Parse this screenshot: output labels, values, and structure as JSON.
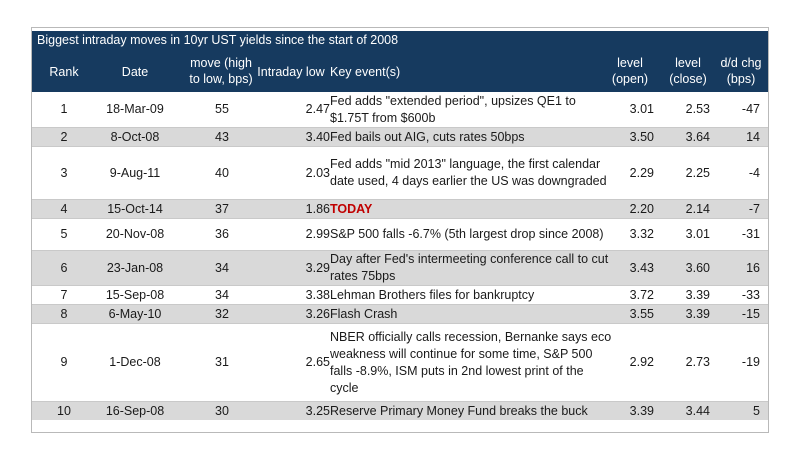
{
  "table_title": "Biggest intraday moves in 10yr UST yields since the start of 2008",
  "headers": {
    "rank": "Rank",
    "date": "Date",
    "move_1": "move (high",
    "move_2": "to low, bps)",
    "intraday_low": "Intraday low",
    "key_event": "Key event(s)",
    "open_1": "level",
    "open_2": "(open)",
    "close_1": "level",
    "close_2": "(close)",
    "chg_1": "d/d chg",
    "chg_2": "(bps)"
  },
  "rows": [
    {
      "rank": "1",
      "date": "18-Mar-09",
      "move": "55",
      "low": "2.47",
      "event": "Fed adds \"extended period\", upsizes QE1 to $1.75T from $600b",
      "open": "3.01",
      "close": "2.53",
      "chg": "-47"
    },
    {
      "rank": "2",
      "date": "8-Oct-08",
      "move": "43",
      "low": "3.40",
      "event": "Fed bails out AIG, cuts rates 50bps",
      "open": "3.50",
      "close": "3.64",
      "chg": "14"
    },
    {
      "rank": "3",
      "date": "9-Aug-11",
      "move": "40",
      "low": "2.03",
      "event": "Fed adds \"mid 2013\" language, the first calendar date used, 4 days earlier the US was downgraded",
      "open": "2.29",
      "close": "2.25",
      "chg": "-4"
    },
    {
      "rank": "4",
      "date": "15-Oct-14",
      "move": "37",
      "low": "1.86",
      "event": "TODAY",
      "open": "2.20",
      "close": "2.14",
      "chg": "-7"
    },
    {
      "rank": "5",
      "date": "20-Nov-08",
      "move": "36",
      "low": "2.99",
      "event": "S&P 500 falls -6.7% (5th largest drop since 2008)",
      "open": "3.32",
      "close": "3.01",
      "chg": "-31"
    },
    {
      "rank": "6",
      "date": "23-Jan-08",
      "move": "34",
      "low": "3.29",
      "event": "Day after Fed's intermeeting conference call to cut rates 75bps",
      "open": "3.43",
      "close": "3.60",
      "chg": "16"
    },
    {
      "rank": "7",
      "date": "15-Sep-08",
      "move": "34",
      "low": "3.38",
      "event": "Lehman Brothers files for bankruptcy",
      "open": "3.72",
      "close": "3.39",
      "chg": "-33"
    },
    {
      "rank": "8",
      "date": "6-May-10",
      "move": "32",
      "low": "3.26",
      "event": "Flash Crash",
      "open": "3.55",
      "close": "3.39",
      "chg": "-15"
    },
    {
      "rank": "9",
      "date": "1-Dec-08",
      "move": "31",
      "low": "2.65",
      "event": "NBER officially calls recession, Bernanke says eco weakness will continue for some time, S&P 500 falls -8.9%, ISM puts in 2nd lowest print of the cycle",
      "open": "2.92",
      "close": "2.73",
      "chg": "-19"
    },
    {
      "rank": "10",
      "date": "16-Sep-08",
      "move": "30",
      "low": "3.25",
      "event": "Reserve Primary Money Fund breaks the buck",
      "open": "3.39",
      "close": "3.44",
      "chg": "5"
    }
  ],
  "colors": {
    "header_bg": "#163a5f",
    "alt_row_bg": "#d9d9d9",
    "today_text": "#c00000"
  }
}
